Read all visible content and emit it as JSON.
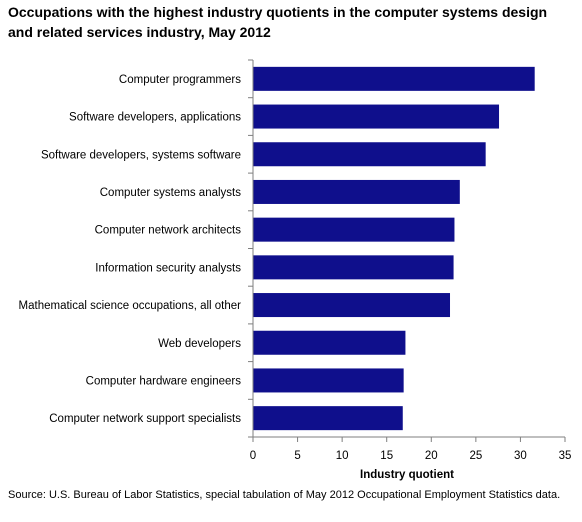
{
  "chart_data": {
    "type": "bar",
    "orientation": "horizontal",
    "title": "Occupations with the highest industry quotients in the computer systems design and related services industry, May 2012",
    "categories": [
      "Computer programmers",
      "Software developers, applications",
      "Software developers, systems software",
      "Computer systems analysts",
      "Computer network architects",
      "Information security analysts",
      "Mathematical science occupations, all other",
      "Web developers",
      "Computer hardware engineers",
      "Computer network support specialists"
    ],
    "values": [
      31.6,
      27.6,
      26.1,
      23.2,
      22.6,
      22.5,
      22.1,
      17.1,
      16.9,
      16.8
    ],
    "xlabel": "Industry quotient",
    "ylabel": "",
    "xlim": [
      0,
      35
    ],
    "xticks": [
      "0",
      "5",
      "10",
      "15",
      "20",
      "25",
      "30",
      "35"
    ],
    "grid": false,
    "legend": "none",
    "bar_color": "#0f0f8c",
    "source": "Source: U.S. Bureau of Labor Statistics, special tabulation of May 2012 Occupational Employment Statistics data."
  }
}
